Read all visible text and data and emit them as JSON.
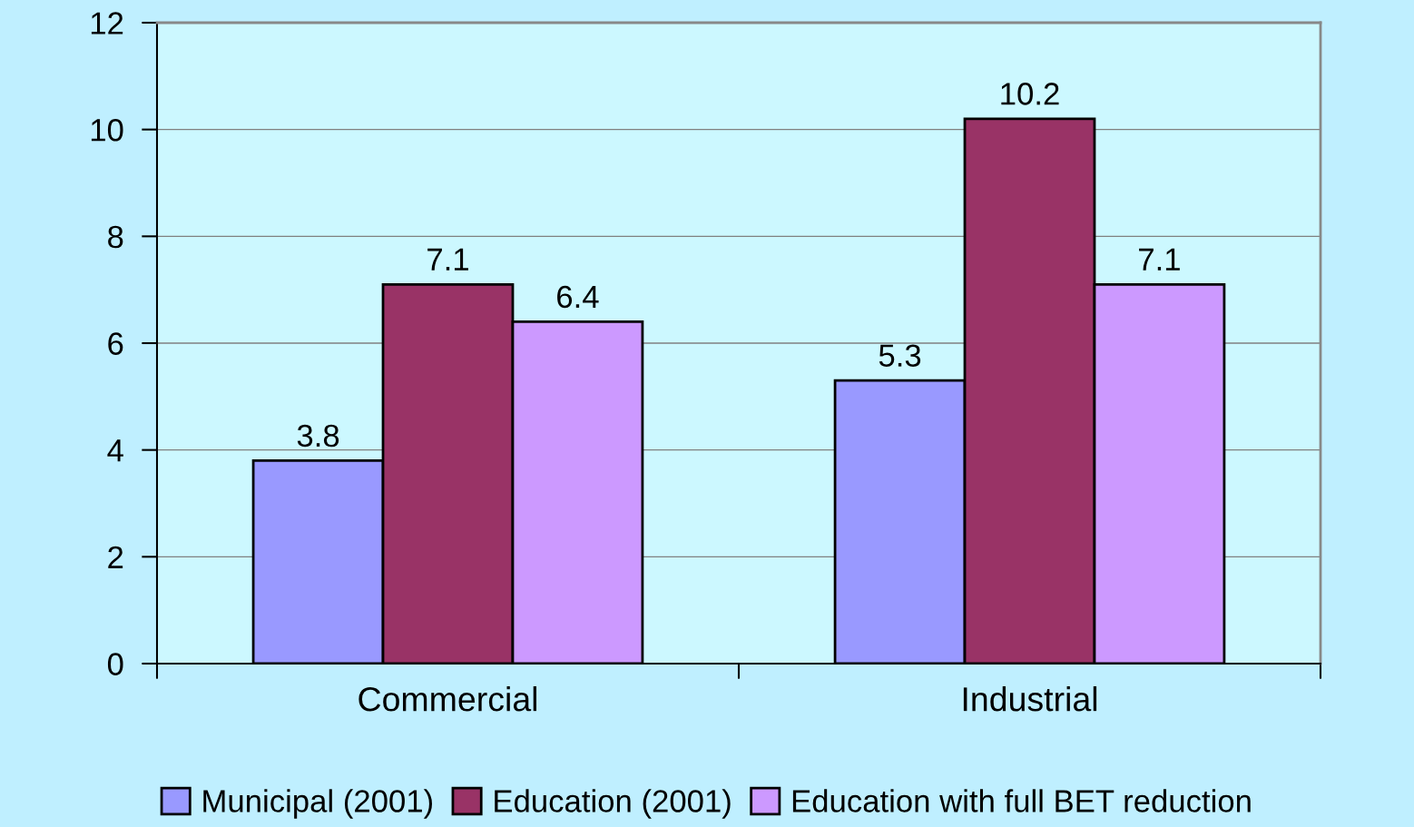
{
  "chart_data": {
    "type": "bar",
    "categories": [
      "Commercial",
      "Industrial"
    ],
    "series": [
      {
        "name": "Municipal (2001)",
        "color": "#9999ff",
        "values": [
          3.8,
          5.3
        ]
      },
      {
        "name": "Education (2001)",
        "color": "#993366",
        "values": [
          7.1,
          10.2
        ]
      },
      {
        "name": "Education with full BET reduction",
        "color": "#cc99ff",
        "values": [
          6.4,
          7.1
        ]
      }
    ],
    "ylim": [
      0,
      12
    ],
    "yticks": [
      0,
      2,
      4,
      6,
      8,
      10,
      12
    ],
    "grid": "y",
    "legend": "bottom",
    "data_labels": true
  }
}
